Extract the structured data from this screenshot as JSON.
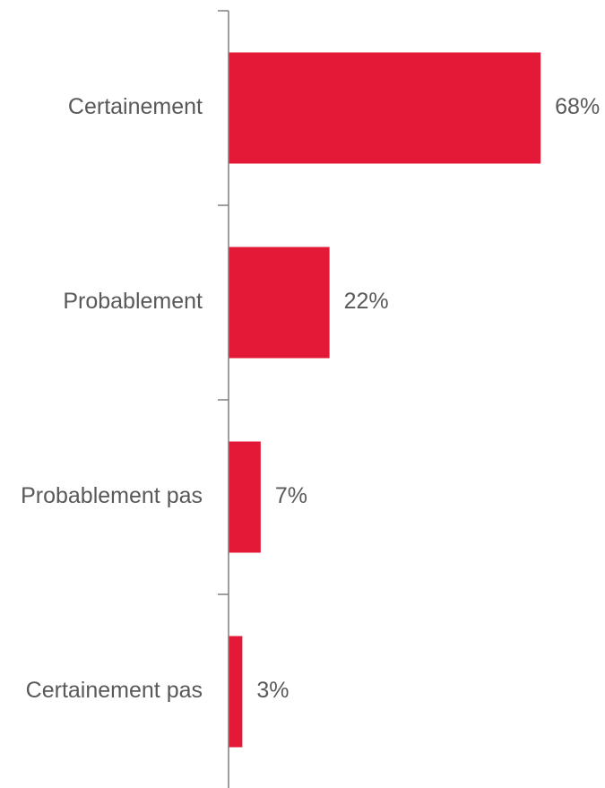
{
  "chart_data": {
    "type": "bar",
    "orientation": "horizontal",
    "categories": [
      "Certainement",
      "Probablement",
      "Probablement pas",
      "Certainement pas"
    ],
    "values": [
      68,
      22,
      7,
      3
    ],
    "value_labels": [
      "68%",
      "22%",
      "7%",
      "3%"
    ],
    "unit": "%",
    "title": "",
    "xlabel": "",
    "ylabel": "",
    "xlim": [
      0,
      100
    ],
    "grid": false,
    "legend": "none",
    "bar_color": "#E31937"
  }
}
